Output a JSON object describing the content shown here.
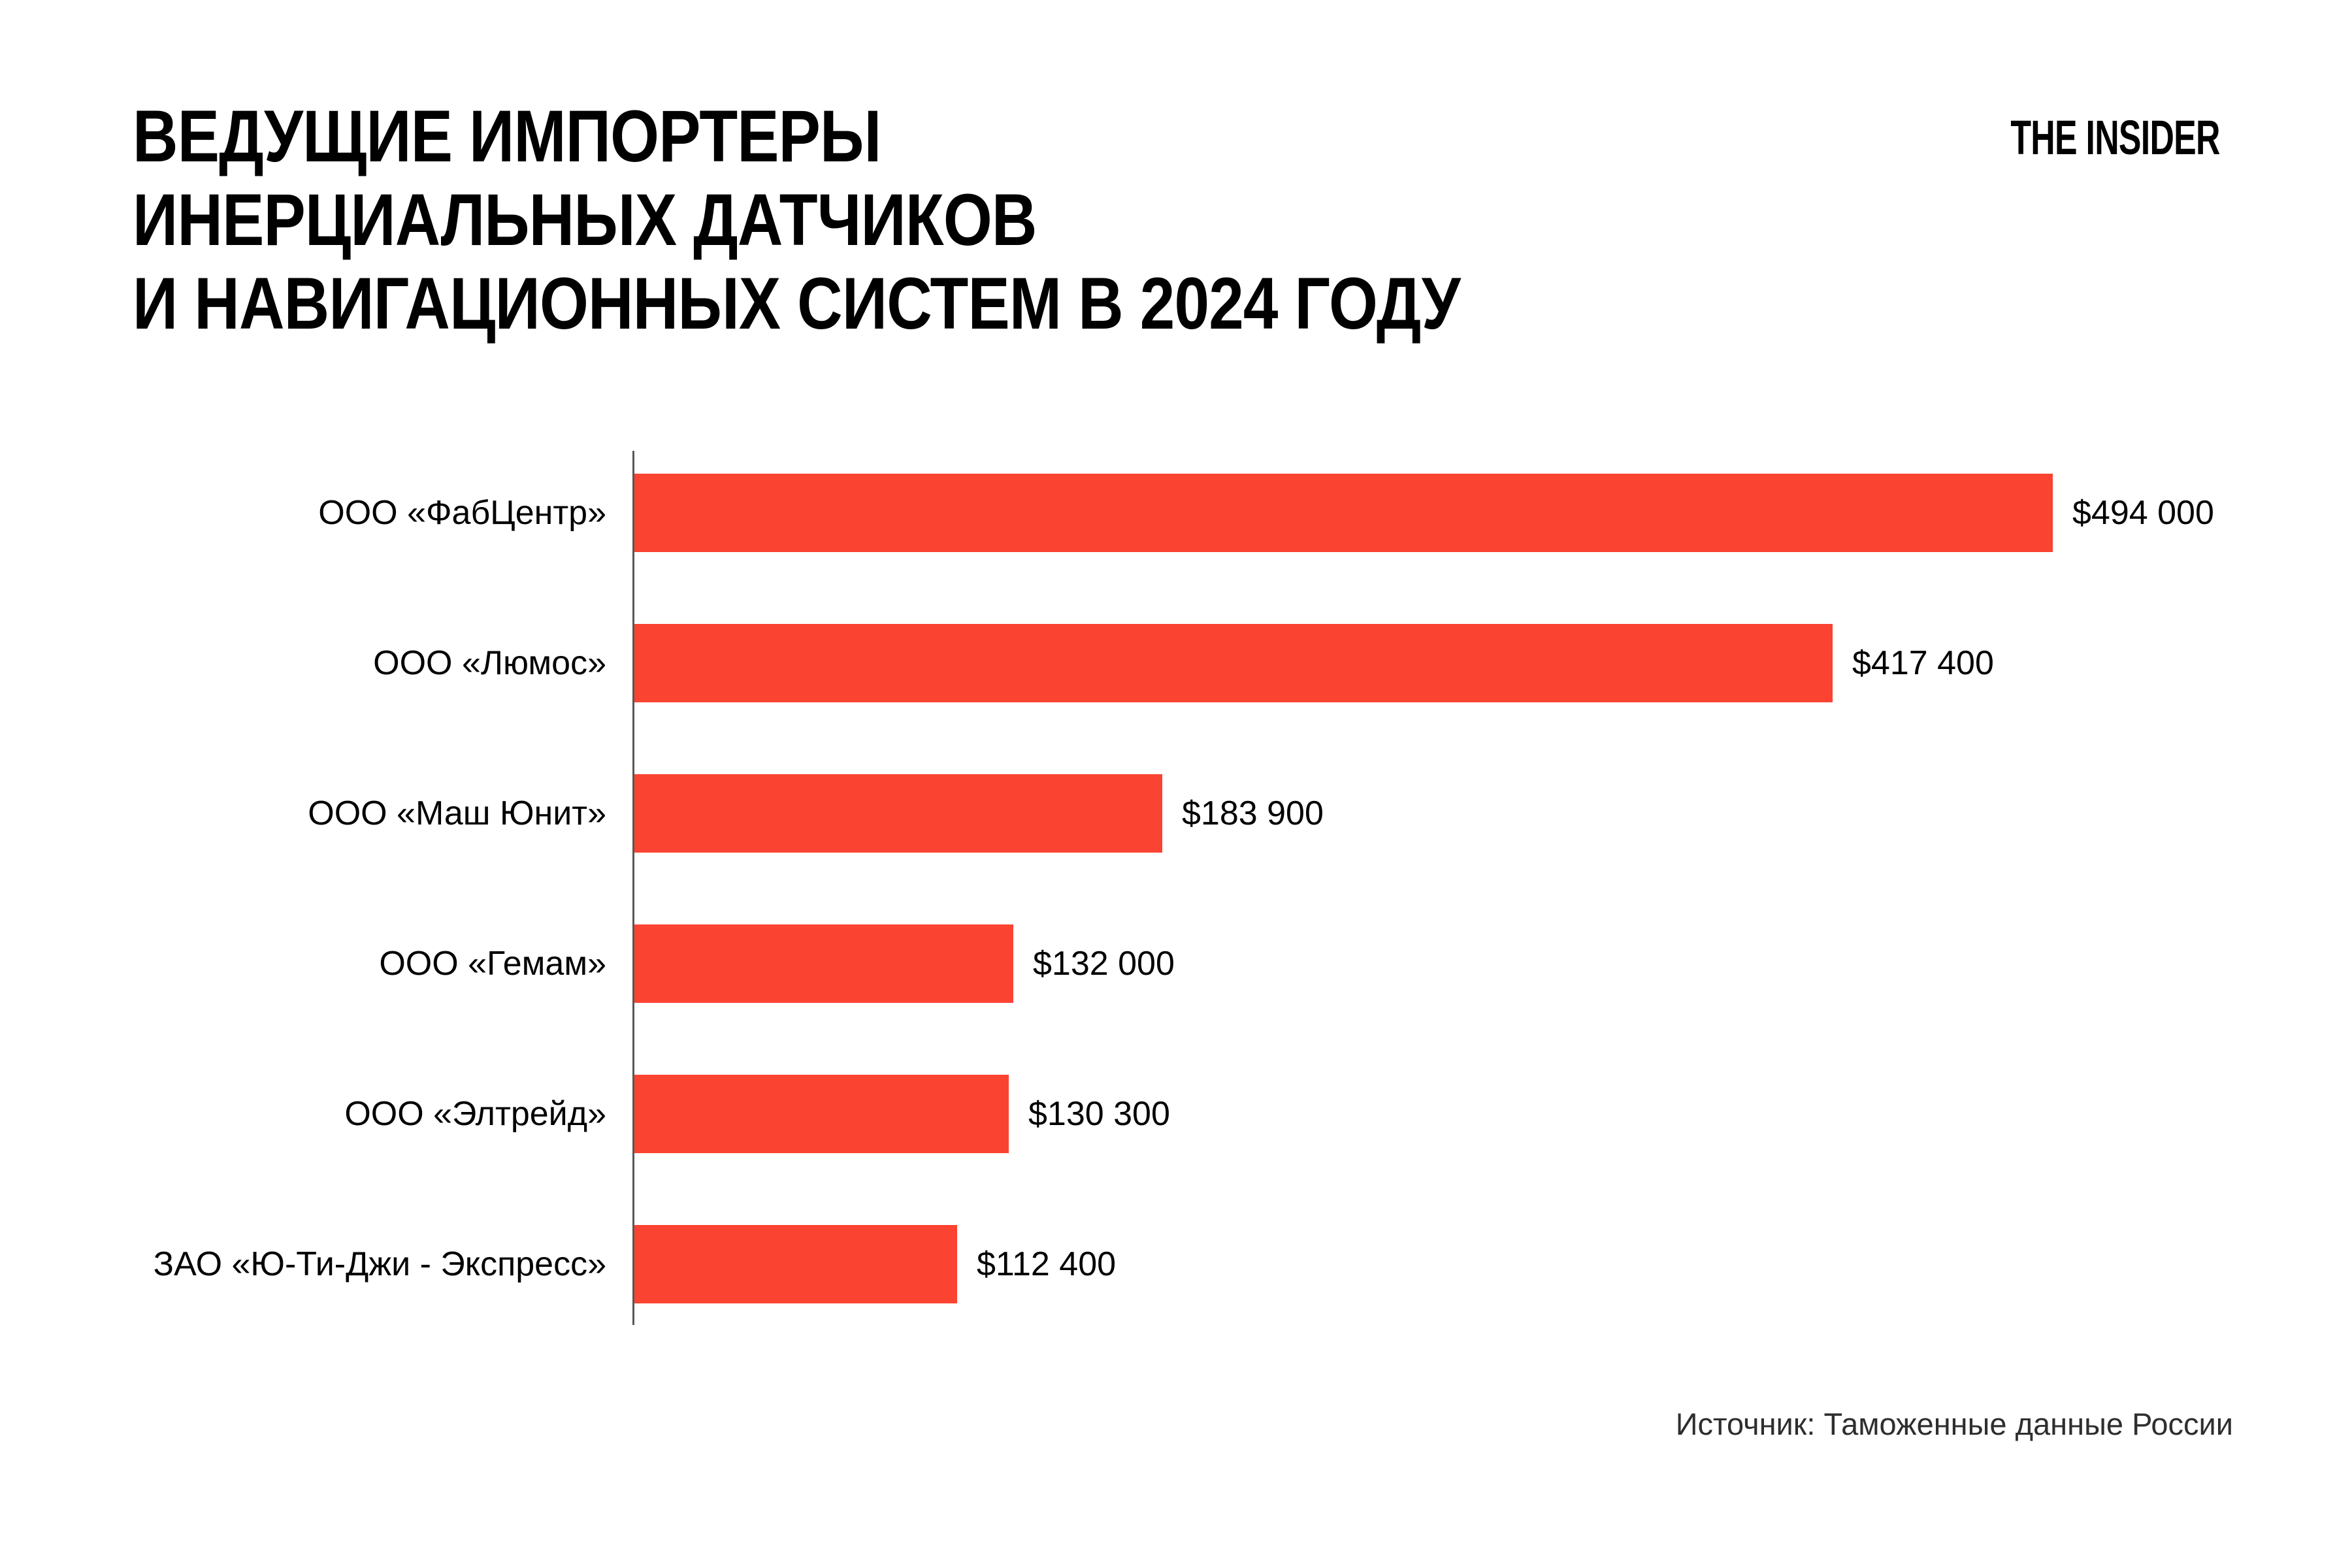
{
  "page": {
    "background_color": "#FFFFFF"
  },
  "header": {
    "title_lines": [
      "ВЕДУЩИЕ ИМПОРТЕРЫ",
      "ИНЕРЦИАЛЬНЫХ ДАТЧИКОВ",
      "И НАВИГАЦИОННЫХ СИСТЕМ В 2024 ГОДУ"
    ],
    "logo_text": "THE INSIDER"
  },
  "chart_data": {
    "type": "bar",
    "orientation": "horizontal",
    "title": "ВЕДУЩИЕ ИМПОРТЕРЫ ИНЕРЦИАЛЬНЫХ ДАТЧИКОВ И НАВИГАЦИОННЫХ СИСТЕМ В 2024 ГОДУ",
    "categories": [
      "ООО «ФабЦентр»",
      "ООО «Люмос»",
      "ООО «Маш Юнит»",
      "ООО «Гемам»",
      "ООО «Элтрейд»",
      "ЗАО «Ю-Ти-Джи - Экспресс»"
    ],
    "values": [
      494000,
      417400,
      183900,
      132000,
      130300,
      112400
    ],
    "value_labels": [
      "$494 000",
      "$417 400",
      "$183 900",
      "$132 000",
      "$130 300",
      "$112 400"
    ],
    "currency": "USD",
    "xlim": [
      0,
      494000
    ],
    "grid": false,
    "legend": false,
    "bar_color": "#FB4332",
    "axis_color": "#575757"
  },
  "footer": {
    "source": "Источник: Таможенные данные России"
  }
}
